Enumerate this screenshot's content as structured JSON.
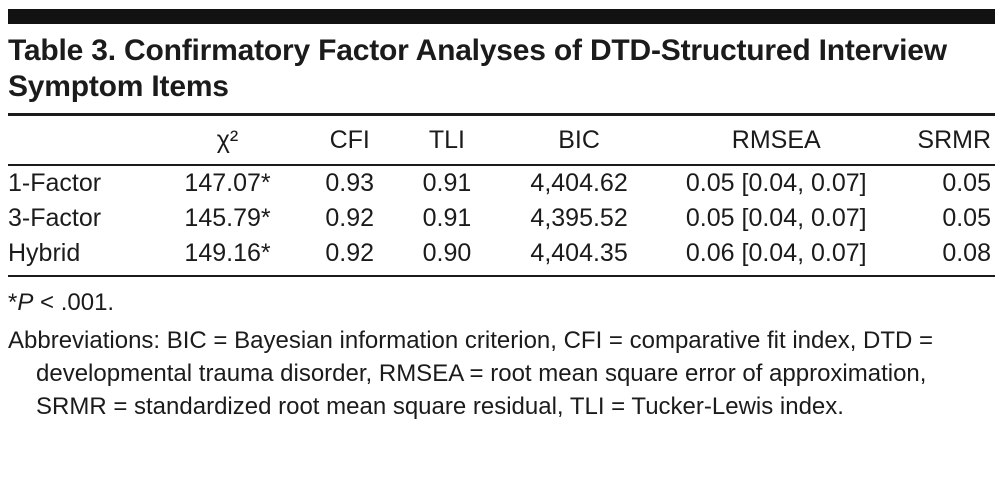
{
  "title": "Table 3. Confirmatory Factor Analyses of DTD-Structured Interview Symptom Items",
  "table": {
    "headers": [
      "",
      "χ²",
      "CFI",
      "TLI",
      "BIC",
      "RMSEA",
      "SRMR"
    ],
    "rows": [
      [
        "1-Factor",
        "147.07*",
        "0.93",
        "0.91",
        "4,404.62",
        "0.05 [0.04, 0.07]",
        "0.05"
      ],
      [
        "3-Factor",
        "145.79*",
        "0.92",
        "0.91",
        "4,395.52",
        "0.05 [0.04, 0.07]",
        "0.05"
      ],
      [
        "Hybrid",
        "149.16*",
        "0.92",
        "0.90",
        "4,404.35",
        "0.06 [0.04, 0.07]",
        "0.08"
      ]
    ]
  },
  "footnotes": {
    "pvalue": {
      "star": "*",
      "p": "P",
      "rest": " < .001."
    },
    "abbreviations": "Abbreviations: BIC = Bayesian information criterion, CFI = comparative fit index, DTD = developmental trauma disorder, RMSEA = root mean square error of approximation, SRMR = standardized root mean square residual, TLI = Tucker-Lewis index."
  }
}
